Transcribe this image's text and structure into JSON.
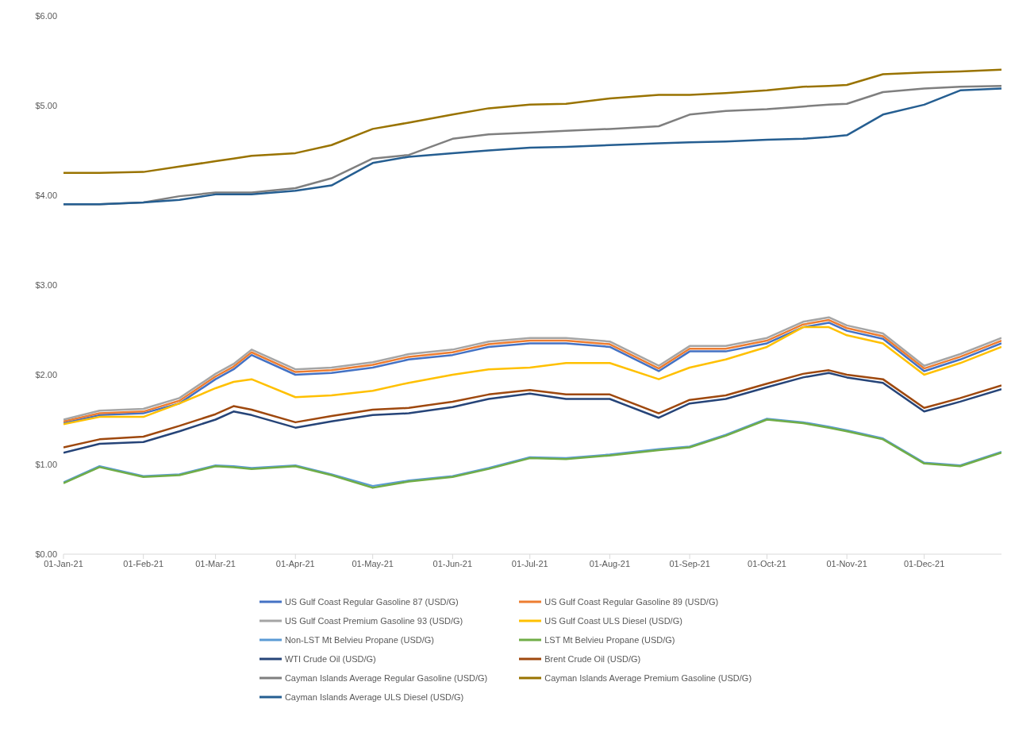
{
  "chart_data": {
    "type": "line",
    "x": [
      "2021-01-01",
      "2021-01-15",
      "2021-02-01",
      "2021-02-15",
      "2021-03-01",
      "2021-03-08",
      "2021-03-15",
      "2021-04-01",
      "2021-04-15",
      "2021-05-01",
      "2021-05-15",
      "2021-06-01",
      "2021-06-15",
      "2021-07-01",
      "2021-07-15",
      "2021-08-01",
      "2021-08-20",
      "2021-09-01",
      "2021-09-15",
      "2021-10-01",
      "2021-10-15",
      "2021-10-25",
      "2021-11-01",
      "2021-11-15",
      "2021-12-01",
      "2021-12-15",
      "2021-12-31"
    ],
    "xlim": [
      "2021-01-01",
      "2021-12-31"
    ],
    "xticks": [
      {
        "value": "2021-01-01",
        "label": "01-Jan-21"
      },
      {
        "value": "2021-02-01",
        "label": "01-Feb-21"
      },
      {
        "value": "2021-03-01",
        "label": "01-Mar-21"
      },
      {
        "value": "2021-04-01",
        "label": "01-Apr-21"
      },
      {
        "value": "2021-05-01",
        "label": "01-May-21"
      },
      {
        "value": "2021-06-01",
        "label": "01-Jun-21"
      },
      {
        "value": "2021-07-01",
        "label": "01-Jul-21"
      },
      {
        "value": "2021-08-01",
        "label": "01-Aug-21"
      },
      {
        "value": "2021-09-01",
        "label": "01-Sep-21"
      },
      {
        "value": "2021-10-01",
        "label": "01-Oct-21"
      },
      {
        "value": "2021-11-01",
        "label": "01-Nov-21"
      },
      {
        "value": "2021-12-01",
        "label": "01-Dec-21"
      }
    ],
    "ylim": [
      0,
      6
    ],
    "yticks": [
      {
        "value": 0,
        "label": "$0.00"
      },
      {
        "value": 1,
        "label": "$1.00"
      },
      {
        "value": 2,
        "label": "$2.00"
      },
      {
        "value": 3,
        "label": "$3.00"
      },
      {
        "value": 4,
        "label": "$4.00"
      },
      {
        "value": 5,
        "label": "$5.00"
      },
      {
        "value": 6,
        "label": "$6.00"
      }
    ],
    "legend": "bottom",
    "marker": "none",
    "line_style": "solid",
    "series": [
      {
        "name": "US Gulf Coast Regular Gasoline 87 (USD/G)",
        "color": "#4472c4",
        "values": [
          1.46,
          1.55,
          1.57,
          1.68,
          1.95,
          2.06,
          2.22,
          2.0,
          2.02,
          2.08,
          2.17,
          2.22,
          2.31,
          2.35,
          2.35,
          2.31,
          2.04,
          2.26,
          2.26,
          2.35,
          2.53,
          2.58,
          2.49,
          2.4,
          2.04,
          2.17,
          2.35
        ]
      },
      {
        "name": "US Gulf Coast Regular Gasoline 89 (USD/G)",
        "color": "#ed7d31",
        "values": [
          1.48,
          1.57,
          1.59,
          1.71,
          1.98,
          2.09,
          2.25,
          2.03,
          2.05,
          2.11,
          2.2,
          2.25,
          2.34,
          2.38,
          2.38,
          2.34,
          2.07,
          2.29,
          2.29,
          2.38,
          2.56,
          2.61,
          2.52,
          2.43,
          2.07,
          2.2,
          2.38
        ]
      },
      {
        "name": "US Gulf Coast Premium Gasoline 93 (USD/G)",
        "color": "#a5a5a5",
        "values": [
          1.5,
          1.6,
          1.62,
          1.74,
          2.01,
          2.12,
          2.28,
          2.06,
          2.08,
          2.14,
          2.23,
          2.28,
          2.37,
          2.41,
          2.41,
          2.37,
          2.1,
          2.32,
          2.32,
          2.41,
          2.59,
          2.64,
          2.55,
          2.46,
          2.1,
          2.23,
          2.41
        ]
      },
      {
        "name": "US Gulf Coast ULS Diesel (USD/G)",
        "color": "#ffc000",
        "values": [
          1.45,
          1.53,
          1.53,
          1.68,
          1.85,
          1.92,
          1.95,
          1.75,
          1.77,
          1.82,
          1.91,
          2.0,
          2.06,
          2.08,
          2.13,
          2.13,
          1.95,
          2.08,
          2.17,
          2.31,
          2.53,
          2.53,
          2.44,
          2.35,
          2.0,
          2.13,
          2.31
        ]
      },
      {
        "name": "Non-LST Mt Belvieu Propane (USD/G)",
        "color": "#5b9bd5",
        "values": [
          0.8,
          0.98,
          0.87,
          0.89,
          0.99,
          0.98,
          0.96,
          0.99,
          0.89,
          0.76,
          0.82,
          0.87,
          0.96,
          1.08,
          1.07,
          1.11,
          1.17,
          1.2,
          1.33,
          1.51,
          1.47,
          1.42,
          1.38,
          1.29,
          1.02,
          0.99,
          1.14
        ]
      },
      {
        "name": "LST Mt Belvieu Propane (USD/G)",
        "color": "#70ad47",
        "values": [
          0.79,
          0.97,
          0.86,
          0.88,
          0.98,
          0.97,
          0.95,
          0.98,
          0.88,
          0.74,
          0.81,
          0.86,
          0.95,
          1.07,
          1.06,
          1.1,
          1.16,
          1.19,
          1.32,
          1.5,
          1.46,
          1.41,
          1.37,
          1.28,
          1.01,
          0.98,
          1.13
        ]
      },
      {
        "name": "WTI Crude Oil (USD/G)",
        "color": "#264478",
        "values": [
          1.13,
          1.23,
          1.25,
          1.37,
          1.5,
          1.59,
          1.55,
          1.41,
          1.48,
          1.55,
          1.57,
          1.64,
          1.73,
          1.79,
          1.73,
          1.73,
          1.52,
          1.68,
          1.73,
          1.86,
          1.97,
          2.02,
          1.97,
          1.91,
          1.59,
          1.7,
          1.84
        ]
      },
      {
        "name": "Brent Crude Oil (USD/G)",
        "color": "#9e480e",
        "values": [
          1.19,
          1.28,
          1.31,
          1.43,
          1.56,
          1.65,
          1.61,
          1.47,
          1.54,
          1.61,
          1.63,
          1.7,
          1.78,
          1.83,
          1.78,
          1.78,
          1.57,
          1.72,
          1.77,
          1.9,
          2.01,
          2.05,
          2.0,
          1.95,
          1.63,
          1.74,
          1.88
        ]
      },
      {
        "name": "Cayman Islands Average Regular Gasoline (USD/G)",
        "color": "#7f7f7f",
        "values": [
          3.9,
          3.9,
          3.92,
          3.99,
          4.03,
          4.03,
          4.03,
          4.08,
          4.19,
          4.41,
          4.45,
          4.63,
          4.68,
          4.7,
          4.72,
          4.74,
          4.77,
          4.9,
          4.94,
          4.96,
          4.99,
          5.01,
          5.02,
          5.15,
          5.19,
          5.21,
          5.22
        ]
      },
      {
        "name": "Cayman Islands Average Premium Gasoline (USD/G)",
        "color": "#997300",
        "values": [
          4.25,
          4.25,
          4.26,
          4.32,
          4.38,
          4.41,
          4.44,
          4.47,
          4.56,
          4.74,
          4.81,
          4.9,
          4.97,
          5.01,
          5.02,
          5.08,
          5.12,
          5.12,
          5.14,
          5.17,
          5.21,
          5.22,
          5.23,
          5.35,
          5.37,
          5.38,
          5.4
        ]
      },
      {
        "name": "Cayman Islands Average ULS Diesel (USD/G)",
        "color": "#255e91",
        "values": [
          3.9,
          3.9,
          3.92,
          3.95,
          4.01,
          4.01,
          4.01,
          4.05,
          4.11,
          4.36,
          4.43,
          4.47,
          4.5,
          4.53,
          4.54,
          4.56,
          4.58,
          4.59,
          4.6,
          4.62,
          4.63,
          4.65,
          4.67,
          4.9,
          5.01,
          5.17,
          5.19
        ]
      }
    ]
  }
}
